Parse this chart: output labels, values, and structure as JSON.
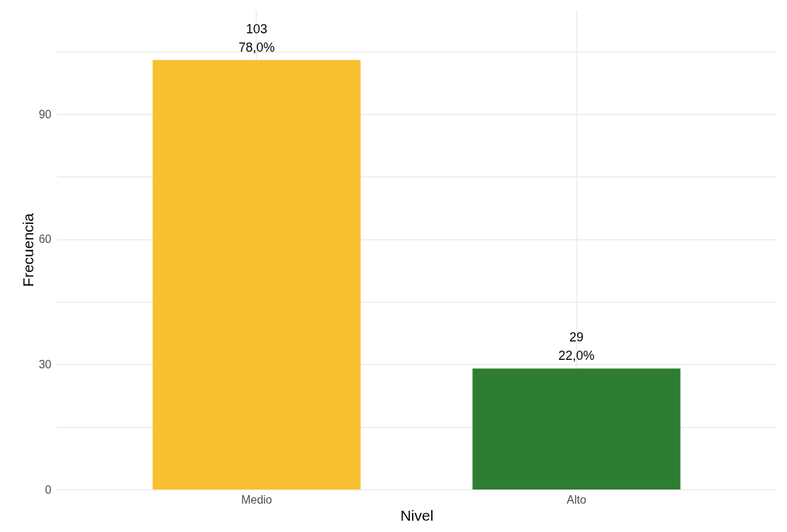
{
  "chart_data": {
    "type": "bar",
    "xlabel": "Nivel",
    "ylabel": "Frecuencia",
    "categories": [
      "Medio",
      "Alto"
    ],
    "values": [
      103,
      29
    ],
    "colors": [
      "#f8bf2f",
      "#2e7d32"
    ],
    "value_labels": [
      "103\n78,0%",
      "29\n22,0%"
    ],
    "ylim": [
      0,
      115
    ],
    "yticks": [
      0,
      {
        "value": 15,
        "label": null
      },
      30,
      {
        "value": 45,
        "label": null
      },
      60,
      {
        "value": 75,
        "label": null
      },
      90,
      {
        "value": 105,
        "label": null
      }
    ],
    "grid": true
  }
}
